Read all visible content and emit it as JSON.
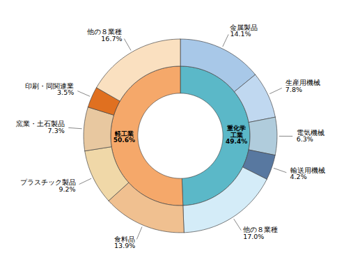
{
  "chart_data": [
    {
      "type": "donut",
      "categories": [
        "重化学\n工業",
        "軽工業"
      ],
      "values": [
        49.4,
        50.6
      ],
      "value_labels": [
        "49.4%",
        "50.6%"
      ],
      "colors": [
        "#5BB8C8",
        "#F5A86A"
      ],
      "data_labels": true
    },
    {
      "type": "donut",
      "categories": [
        "金属製品",
        "生産用機械",
        "電気機械",
        "輸送用機械",
        "他の８業種",
        "食料品",
        "プラスチック製品",
        "窯業・土石製品",
        "印刷・同関連業",
        "他の８業種"
      ],
      "values": [
        14.1,
        7.8,
        6.3,
        4.2,
        17.0,
        13.9,
        9.2,
        7.3,
        3.5,
        16.7
      ],
      "value_labels": [
        "14.1%",
        "7.8%",
        "6.3%",
        "4.2%",
        "17.0%",
        "13.9%",
        "9.2%",
        "7.3%",
        "3.5%",
        "16.7%"
      ],
      "colors": [
        "#A8C8E8",
        "#C0D8F0",
        "#B0CCDC",
        "#5878A0",
        "#D4ECF8",
        "#F0C090",
        "#F0D8A8",
        "#E8C8A0",
        "#E07020",
        "#FAE0C0"
      ],
      "data_labels": true
    }
  ]
}
